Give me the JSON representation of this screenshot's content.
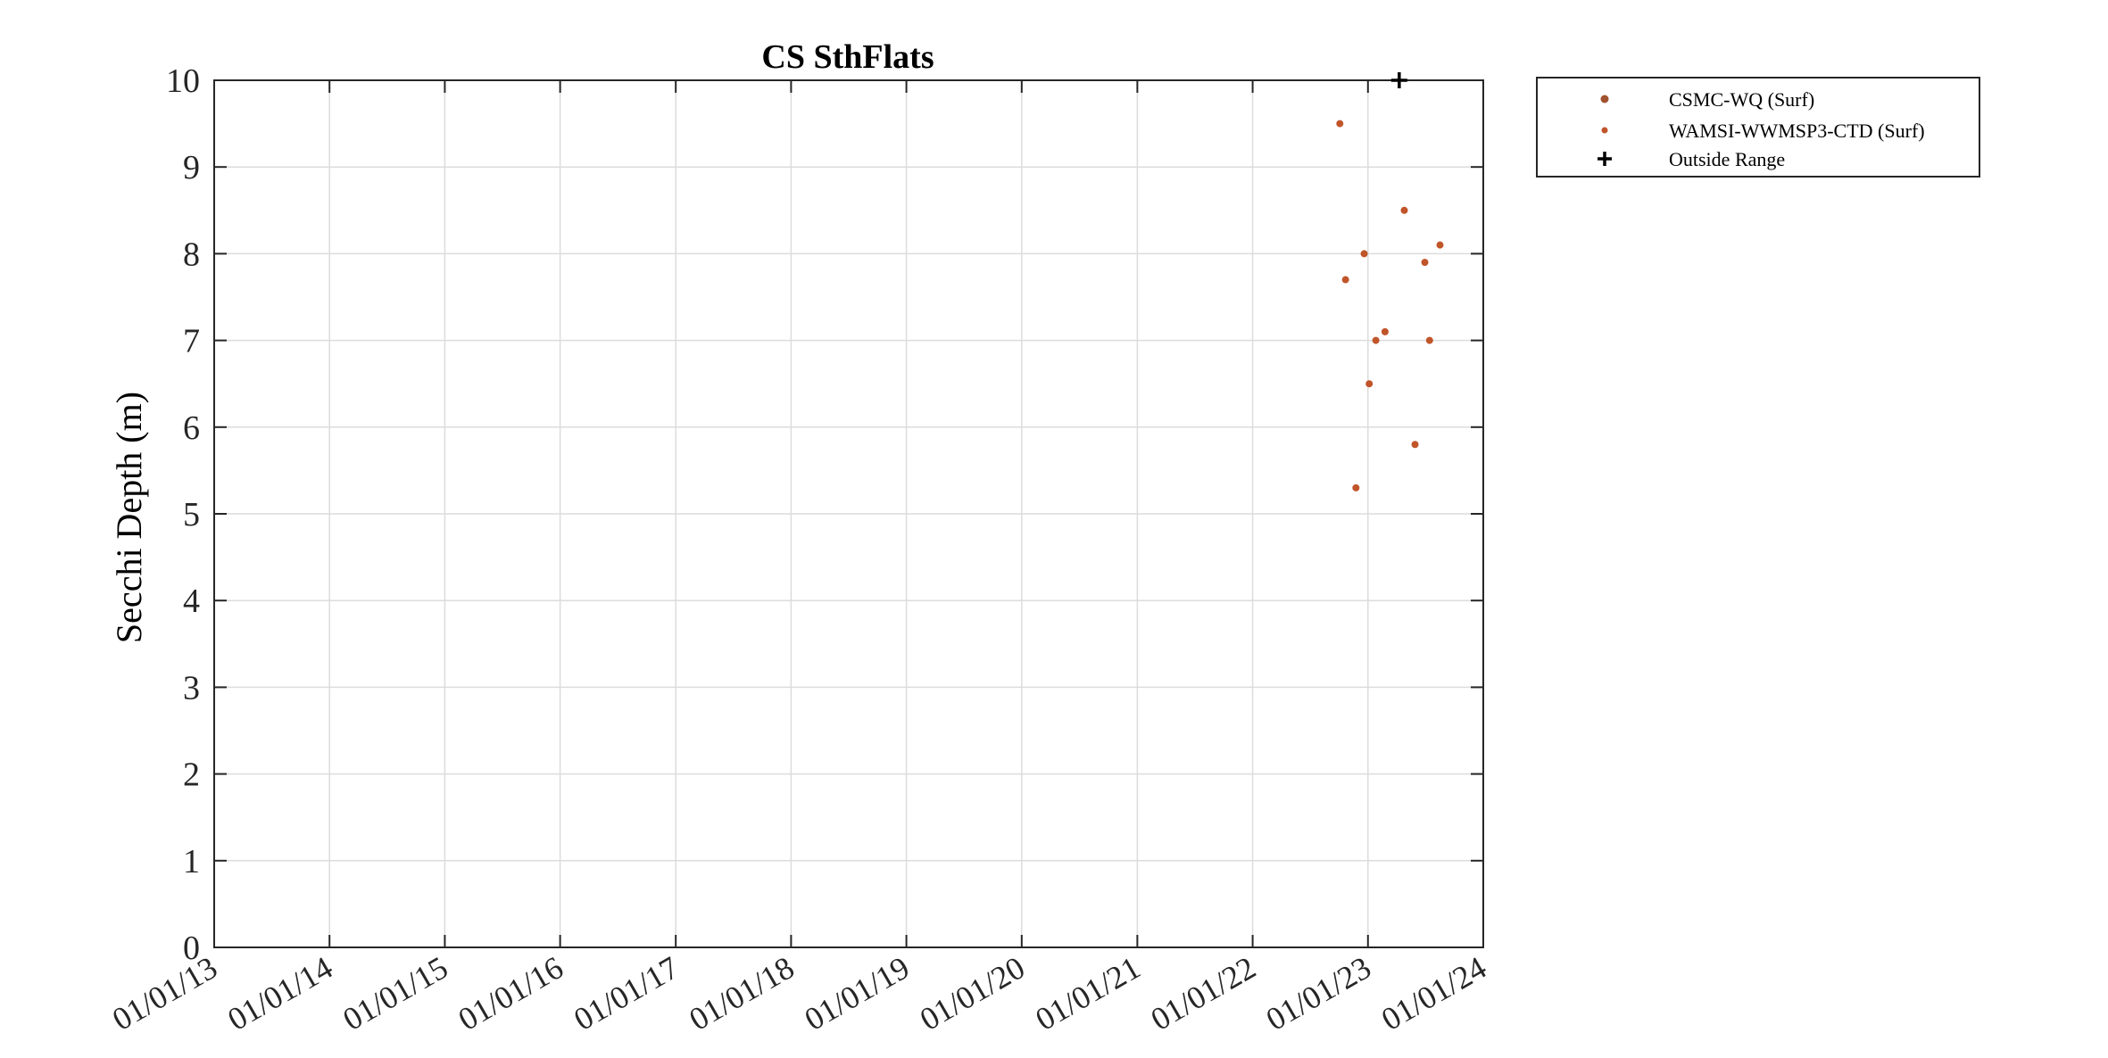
{
  "chart_data": {
    "type": "scatter",
    "title": "CS SthFlats",
    "ylabel": "Secchi Depth (m)",
    "xlabel": "",
    "x_axis": {
      "kind": "date",
      "range": [
        "2013-01-01",
        "2024-01-01"
      ],
      "ticks": [
        "2013-01-01",
        "2014-01-01",
        "2015-01-01",
        "2016-01-01",
        "2017-01-01",
        "2018-01-01",
        "2019-01-01",
        "2020-01-01",
        "2021-01-01",
        "2022-01-01",
        "2023-01-01",
        "2024-01-01"
      ],
      "tick_labels": [
        "01/01/13",
        "01/01/14",
        "01/01/15",
        "01/01/16",
        "01/01/17",
        "01/01/18",
        "01/01/19",
        "01/01/20",
        "01/01/21",
        "01/01/22",
        "01/01/23",
        "01/01/24"
      ]
    },
    "ylim": [
      0,
      10
    ],
    "yticks": [
      0,
      1,
      2,
      3,
      4,
      5,
      6,
      7,
      8,
      9,
      10
    ],
    "grid": true,
    "legend_position": "outside-top-right",
    "series": [
      {
        "name": "CSMC-WQ (Surf)",
        "color": "#a0522d",
        "marker": "dot",
        "points": []
      },
      {
        "name": "WAMSI-WWMSP3-CTD (Surf)",
        "color": "#c0552a",
        "marker": "dot",
        "points": [
          {
            "x": "2022-10-04",
            "y": 9.5
          },
          {
            "x": "2022-10-22",
            "y": 7.7
          },
          {
            "x": "2022-11-24",
            "y": 5.3
          },
          {
            "x": "2022-12-20",
            "y": 8.0
          },
          {
            "x": "2023-01-05",
            "y": 6.5
          },
          {
            "x": "2023-01-26",
            "y": 7.0
          },
          {
            "x": "2023-02-24",
            "y": 7.1
          },
          {
            "x": "2023-04-26",
            "y": 8.5
          },
          {
            "x": "2023-05-30",
            "y": 5.8
          },
          {
            "x": "2023-06-30",
            "y": 7.9
          },
          {
            "x": "2023-07-15",
            "y": 7.0
          },
          {
            "x": "2023-08-17",
            "y": 8.1
          }
        ]
      },
      {
        "name": "Outside Range",
        "color": "#000000",
        "marker": "plus",
        "points": [
          {
            "x": "2023-04-10",
            "y": 10
          }
        ]
      }
    ]
  }
}
